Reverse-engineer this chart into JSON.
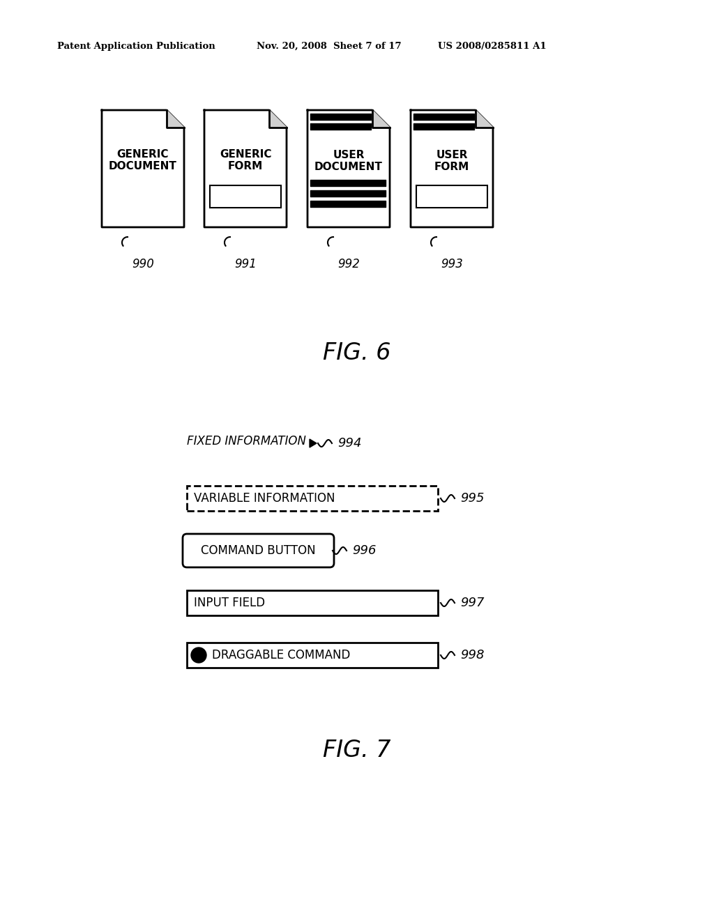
{
  "bg_color": "#ffffff",
  "header_left": "Patent Application Publication",
  "header_mid": "Nov. 20, 2008  Sheet 7 of 17",
  "header_right": "US 2008/0285811 A1",
  "fig6_title": "FIG. 6",
  "fig7_title": "FIG. 7",
  "doc_icons": [
    {
      "label": "GENERIC\nDOCUMENT",
      "num": "990",
      "has_header_bars": false,
      "has_form_box": false,
      "has_body_bars": false
    },
    {
      "label": "GENERIC\nFORM",
      "num": "991",
      "has_header_bars": false,
      "has_form_box": true,
      "has_body_bars": false
    },
    {
      "label": "USER\nDOCUMENT",
      "num": "992",
      "has_header_bars": true,
      "has_form_box": false,
      "has_body_bars": true
    },
    {
      "label": "USER\nFORM",
      "num": "993",
      "has_header_bars": true,
      "has_form_box": true,
      "has_body_bars": false
    }
  ],
  "legend_items": [
    {
      "type": "fixed",
      "label": "FIXED INFORMATION",
      "num": "994"
    },
    {
      "type": "variable",
      "label": "VARIABLE INFORMATION",
      "num": "995"
    },
    {
      "type": "button",
      "label": "COMMAND BUTTON",
      "num": "996"
    },
    {
      "type": "input",
      "label": "INPUT FIELD",
      "num": "997"
    },
    {
      "type": "draggable",
      "label": "DRAGGABLE COMMAND",
      "num": "998"
    }
  ]
}
